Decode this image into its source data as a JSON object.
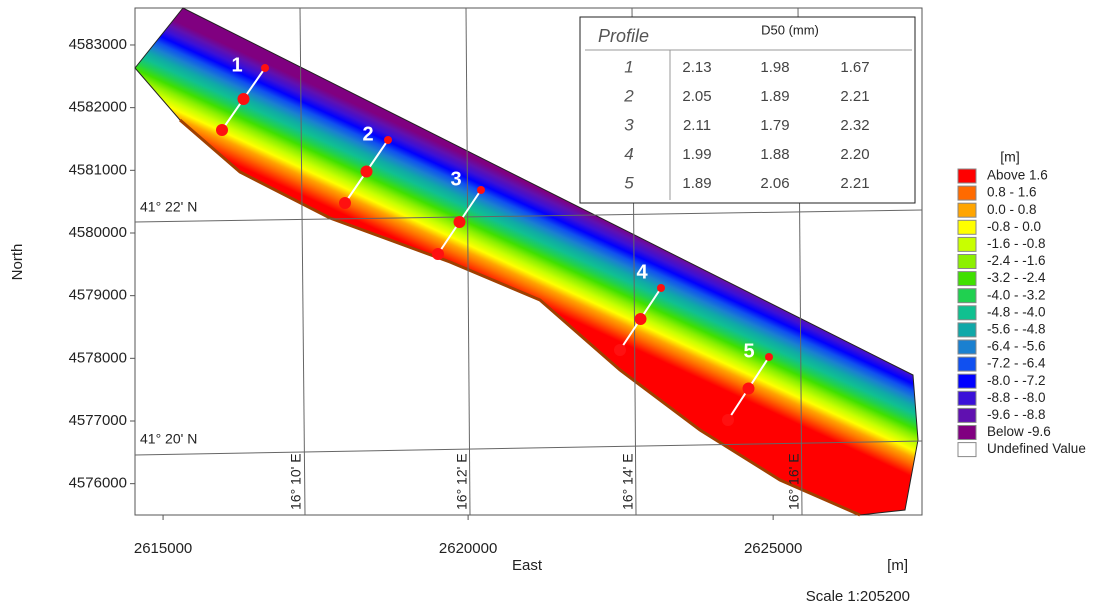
{
  "axes": {
    "x_label": "East",
    "y_label": "North",
    "x_unit": "[m]",
    "scale": "Scale 1:205200",
    "xlim": [
      2614540,
      2627440
    ],
    "ylim": [
      4575500,
      4583590
    ],
    "xticks": [
      2615000,
      2620000,
      2625000
    ],
    "yticks": [
      4576000,
      4577000,
      4578000,
      4579000,
      4580000,
      4581000,
      4582000,
      4583000
    ]
  },
  "grid_labels": {
    "lat": [
      "41° 22' N",
      "41° 20' N"
    ],
    "lon": [
      "16° 10' E",
      "16° 12' E",
      "16° 14' E",
      "16° 16' E"
    ]
  },
  "profiles": [
    "1",
    "2",
    "3",
    "4",
    "5"
  ],
  "table": {
    "header": [
      "Profile",
      "D50 (mm)"
    ],
    "rows": [
      [
        "1",
        "2.13",
        "1.98",
        "1.67"
      ],
      [
        "2",
        "2.05",
        "1.89",
        "2.21"
      ],
      [
        "3",
        "2.11",
        "1.79",
        "2.32"
      ],
      [
        "4",
        "1.99",
        "1.88",
        "2.20"
      ],
      [
        "5",
        "1.89",
        "2.06",
        "2.21"
      ]
    ]
  },
  "legend": {
    "title": "[m]",
    "items": [
      {
        "label": "Above  1.6",
        "color": "#ff0000"
      },
      {
        "label": "0.8 - 1.6",
        "color": "#ff6a00"
      },
      {
        "label": "0.0 - 0.8",
        "color": "#ffa500"
      },
      {
        "label": "-0.8 - 0.0",
        "color": "#ffff00"
      },
      {
        "label": "-1.6 - -0.8",
        "color": "#c8ff00"
      },
      {
        "label": "-2.4 - -1.6",
        "color": "#8cf000"
      },
      {
        "label": "-3.2 - -2.4",
        "color": "#40e000"
      },
      {
        "label": "-4.0 - -3.2",
        "color": "#20d050"
      },
      {
        "label": "-4.8 - -4.0",
        "color": "#10c090"
      },
      {
        "label": "-5.6 - -4.8",
        "color": "#10a8a8"
      },
      {
        "label": "-6.4 - -5.6",
        "color": "#1a80d0"
      },
      {
        "label": "-7.2 - -6.4",
        "color": "#1050f0"
      },
      {
        "label": "-8.0 - -7.2",
        "color": "#0000ff"
      },
      {
        "label": "-8.8 - -8.0",
        "color": "#3a10d8"
      },
      {
        "label": "-9.6 - -8.8",
        "color": "#6010b0"
      },
      {
        "label": "Below -9.6",
        "color": "#800080"
      },
      {
        "label": "Undefined Value",
        "color": "#ffffff"
      }
    ]
  }
}
